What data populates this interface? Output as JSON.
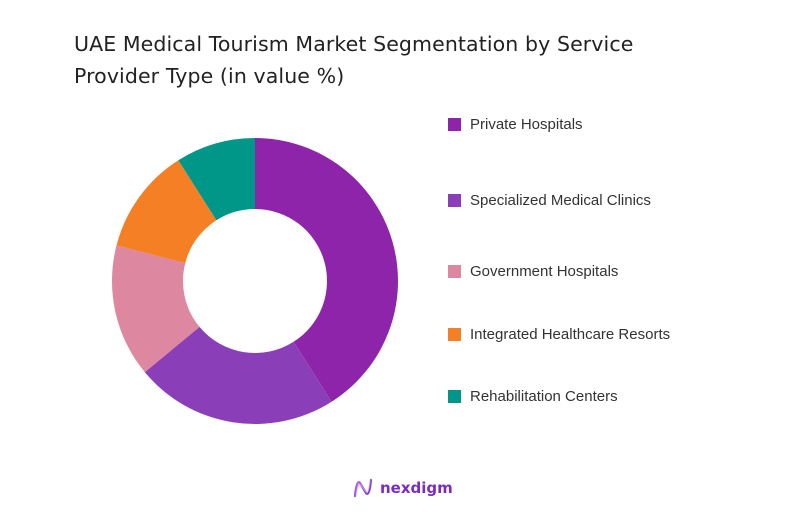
{
  "title": "UAE Medical Tourism Market Segmentation by Service Provider Type (in value %)",
  "title_lines": [
    "UAE Medical Tourism Market Segmentation by Service",
    "Provider Type (in value %)"
  ],
  "brand": {
    "name": "nexdigm",
    "icon": "nexdigm-logo-icon"
  },
  "chart_data": {
    "type": "pie",
    "subtype": "donut",
    "title": "UAE Medical Tourism Market Segmentation by Service Provider Type (in value %)",
    "categories": [
      "Private Hospitals",
      "Specialized Medical Clinics",
      "Government Hospitals",
      "Integrated Healthcare Resorts",
      "Rehabilitation Centers"
    ],
    "values": [
      41,
      23,
      15,
      12,
      9
    ],
    "colors": [
      "#8e24aa",
      "#8a3fb8",
      "#dd88a0",
      "#f57f25",
      "#009688"
    ],
    "unit": "%",
    "start_angle": "12 o'clock, clockwise",
    "legend_position": "right",
    "data_labels": false
  },
  "legend": [
    {
      "label": "Private Hospitals",
      "color": "#8e24aa"
    },
    {
      "label": "Specialized Medical Clinics",
      "color": "#8a3fb8"
    },
    {
      "label": "Government Hospitals",
      "color": "#dd88a0"
    },
    {
      "label": "Integrated Healthcare Resorts",
      "color": "#f57f25"
    },
    {
      "label": "Rehabilitation Centers",
      "color": "#009688"
    }
  ]
}
